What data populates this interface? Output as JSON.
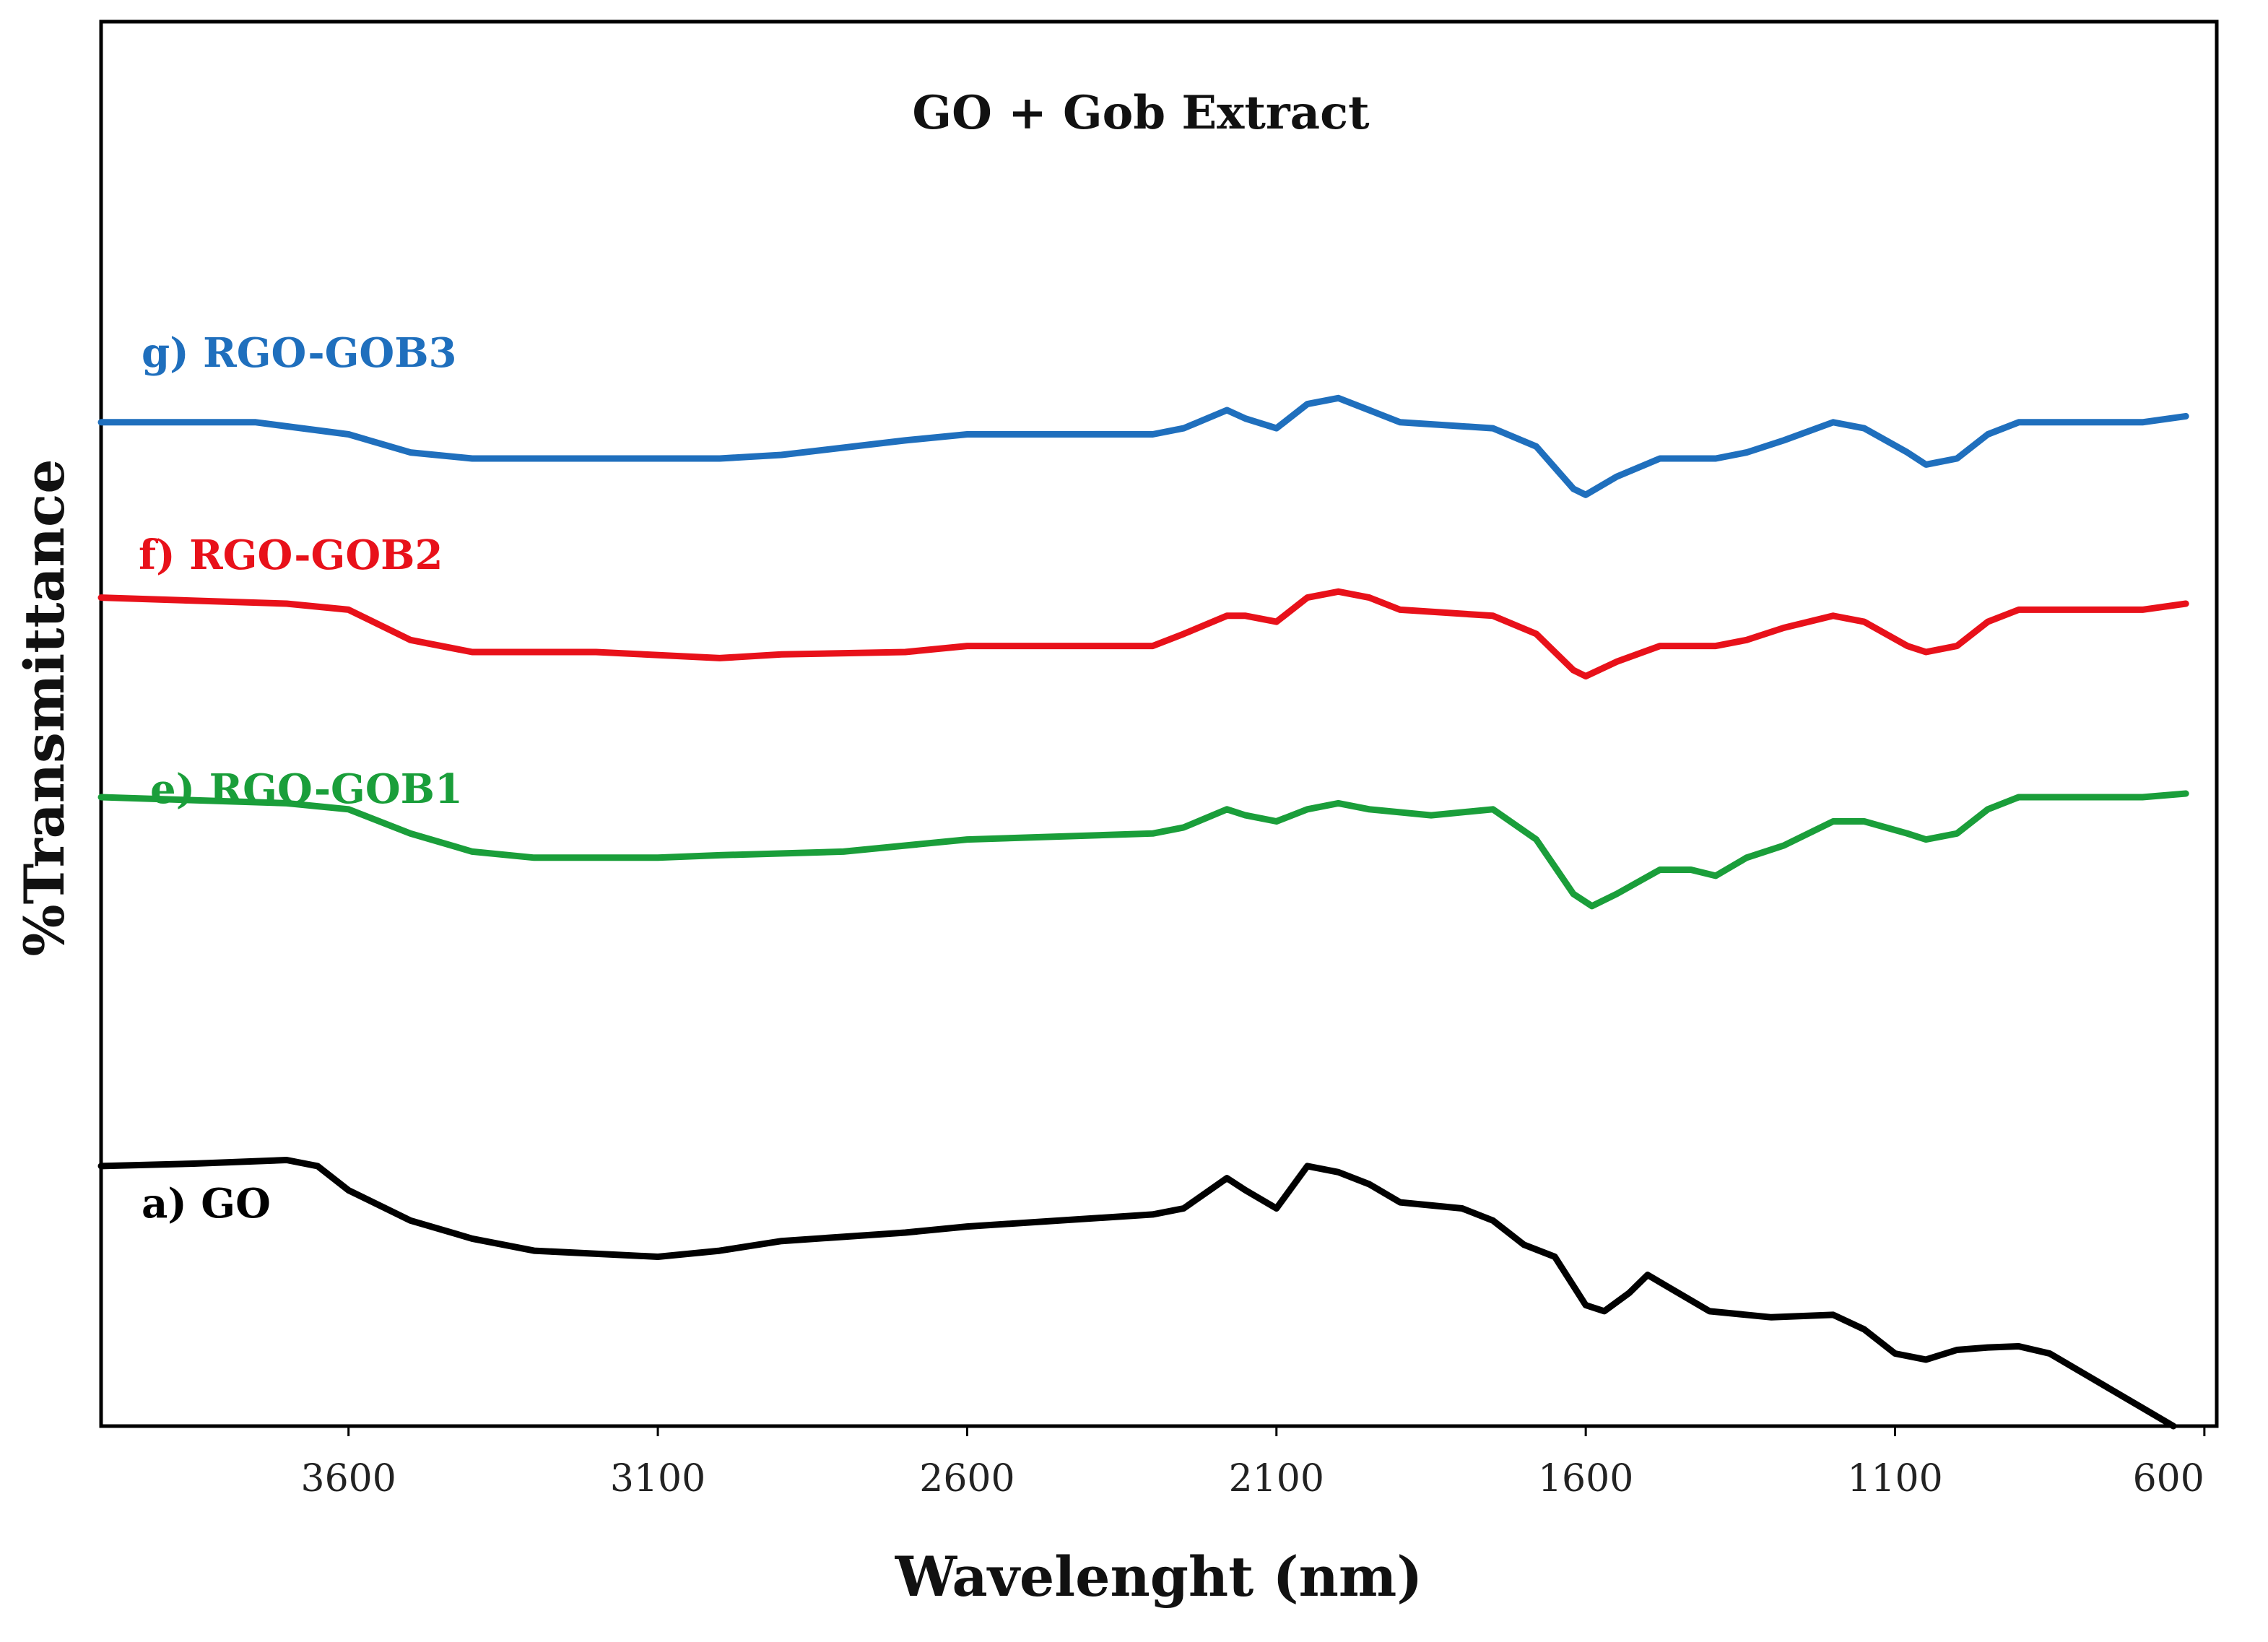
{
  "chart_data": {
    "type": "line",
    "title": "GO + Gob Extract",
    "xlabel": "Wavelenght (nm)",
    "ylabel": "%Transmittance",
    "xlim": [
      4000,
      580
    ],
    "ylim": [
      0,
      100
    ],
    "x_ticks": [
      "3600",
      "3100",
      "2600",
      "2100",
      "1600",
      "1100",
      "600"
    ],
    "grid": false,
    "series": [
      {
        "name": "g) RGO-GOB3",
        "color": "#1f6fbd",
        "points": [
          [
            4000,
            83
          ],
          [
            3750,
            83
          ],
          [
            3600,
            82
          ],
          [
            3500,
            80.5
          ],
          [
            3400,
            80
          ],
          [
            3200,
            80
          ],
          [
            3000,
            80
          ],
          [
            2900,
            80.3
          ],
          [
            2700,
            81.5
          ],
          [
            2600,
            82
          ],
          [
            2300,
            82
          ],
          [
            2250,
            82.5
          ],
          [
            2180,
            84
          ],
          [
            2150,
            83.3
          ],
          [
            2100,
            82.5
          ],
          [
            2050,
            84.5
          ],
          [
            2000,
            85
          ],
          [
            1950,
            84
          ],
          [
            1900,
            83
          ],
          [
            1750,
            82.5
          ],
          [
            1680,
            81
          ],
          [
            1620,
            77.5
          ],
          [
            1600,
            77
          ],
          [
            1550,
            78.5
          ],
          [
            1480,
            80
          ],
          [
            1430,
            80
          ],
          [
            1390,
            80
          ],
          [
            1340,
            80.5
          ],
          [
            1280,
            81.5
          ],
          [
            1200,
            83
          ],
          [
            1150,
            82.5
          ],
          [
            1080,
            80.5
          ],
          [
            1050,
            79.5
          ],
          [
            1000,
            80
          ],
          [
            950,
            82
          ],
          [
            900,
            83
          ],
          [
            700,
            83
          ],
          [
            630,
            83.5
          ]
        ]
      },
      {
        "name": "f) RGO-GOB2",
        "color": "#e8111a",
        "points": [
          [
            4000,
            68.5
          ],
          [
            3700,
            68
          ],
          [
            3600,
            67.5
          ],
          [
            3500,
            65
          ],
          [
            3400,
            64
          ],
          [
            3200,
            64
          ],
          [
            3000,
            63.5
          ],
          [
            2900,
            63.8
          ],
          [
            2700,
            64
          ],
          [
            2600,
            64.5
          ],
          [
            2300,
            64.5
          ],
          [
            2250,
            65.5
          ],
          [
            2180,
            67
          ],
          [
            2150,
            67
          ],
          [
            2100,
            66.5
          ],
          [
            2050,
            68.5
          ],
          [
            2000,
            69
          ],
          [
            1950,
            68.5
          ],
          [
            1900,
            67.5
          ],
          [
            1750,
            67
          ],
          [
            1680,
            65.5
          ],
          [
            1620,
            62.5
          ],
          [
            1600,
            62
          ],
          [
            1550,
            63.2
          ],
          [
            1480,
            64.5
          ],
          [
            1430,
            64.5
          ],
          [
            1390,
            64.5
          ],
          [
            1340,
            65
          ],
          [
            1280,
            66
          ],
          [
            1200,
            67
          ],
          [
            1150,
            66.5
          ],
          [
            1080,
            64.5
          ],
          [
            1050,
            64
          ],
          [
            1000,
            64.5
          ],
          [
            950,
            66.5
          ],
          [
            900,
            67.5
          ],
          [
            700,
            67.5
          ],
          [
            630,
            68
          ]
        ]
      },
      {
        "name": "e) RGO-GOB1",
        "color": "#1a9e3a",
        "points": [
          [
            4000,
            52
          ],
          [
            3700,
            51.5
          ],
          [
            3600,
            51
          ],
          [
            3500,
            49
          ],
          [
            3400,
            47.5
          ],
          [
            3300,
            47
          ],
          [
            3100,
            47
          ],
          [
            3000,
            47.2
          ],
          [
            2800,
            47.5
          ],
          [
            2700,
            48
          ],
          [
            2600,
            48.5
          ],
          [
            2300,
            49
          ],
          [
            2250,
            49.5
          ],
          [
            2180,
            51
          ],
          [
            2150,
            50.5
          ],
          [
            2100,
            50
          ],
          [
            2050,
            51
          ],
          [
            2000,
            51.5
          ],
          [
            1950,
            51
          ],
          [
            1850,
            50.5
          ],
          [
            1750,
            51
          ],
          [
            1680,
            48.5
          ],
          [
            1620,
            44
          ],
          [
            1590,
            43
          ],
          [
            1550,
            44
          ],
          [
            1480,
            46
          ],
          [
            1430,
            46
          ],
          [
            1390,
            45.5
          ],
          [
            1340,
            47
          ],
          [
            1280,
            48
          ],
          [
            1200,
            50
          ],
          [
            1150,
            50
          ],
          [
            1080,
            49
          ],
          [
            1050,
            48.5
          ],
          [
            1000,
            49
          ],
          [
            950,
            51
          ],
          [
            900,
            52
          ],
          [
            700,
            52
          ],
          [
            630,
            52.3
          ]
        ]
      },
      {
        "name": "a) GO",
        "color": "#000000",
        "points": [
          [
            4000,
            21.5
          ],
          [
            3850,
            21.7
          ],
          [
            3700,
            22
          ],
          [
            3650,
            21.5
          ],
          [
            3600,
            19.5
          ],
          [
            3500,
            17
          ],
          [
            3400,
            15.5
          ],
          [
            3300,
            14.5
          ],
          [
            3100,
            14
          ],
          [
            3000,
            14.5
          ],
          [
            2900,
            15.3
          ],
          [
            2700,
            16
          ],
          [
            2600,
            16.5
          ],
          [
            2300,
            17.5
          ],
          [
            2250,
            18
          ],
          [
            2180,
            20.5
          ],
          [
            2150,
            19.5
          ],
          [
            2100,
            18
          ],
          [
            2050,
            21.5
          ],
          [
            2000,
            21
          ],
          [
            1950,
            20
          ],
          [
            1900,
            18.5
          ],
          [
            1800,
            18
          ],
          [
            1750,
            17
          ],
          [
            1700,
            15
          ],
          [
            1650,
            14
          ],
          [
            1600,
            10
          ],
          [
            1570,
            9.5
          ],
          [
            1530,
            11
          ],
          [
            1500,
            12.5
          ],
          [
            1450,
            11
          ],
          [
            1400,
            9.5
          ],
          [
            1300,
            9
          ],
          [
            1200,
            9.2
          ],
          [
            1150,
            8
          ],
          [
            1100,
            6
          ],
          [
            1050,
            5.5
          ],
          [
            1000,
            6.3
          ],
          [
            950,
            6.5
          ],
          [
            900,
            6.6
          ],
          [
            850,
            6
          ],
          [
            800,
            4.5
          ],
          [
            700,
            1.5
          ],
          [
            650,
            0
          ]
        ]
      }
    ]
  }
}
